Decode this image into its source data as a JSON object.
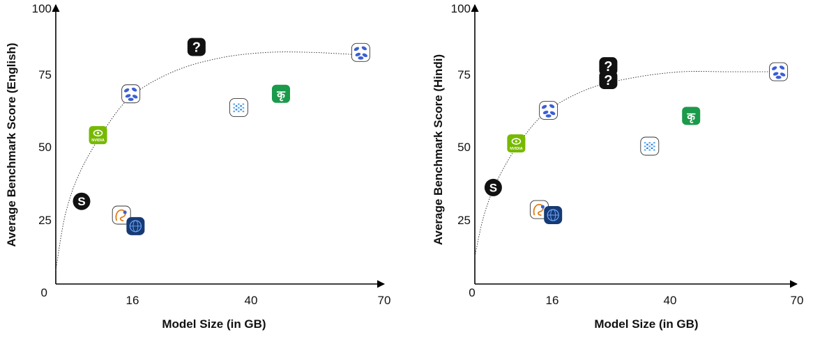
{
  "chart_data": [
    {
      "type": "scatter",
      "title": "",
      "xlabel": "Model Size (in GB)",
      "ylabel": "Average Benchmark Score (English)",
      "xlim": [
        0,
        70
      ],
      "ylim": [
        0,
        100
      ],
      "x_ticks": [
        {
          "value": 0,
          "label": ""
        },
        {
          "value": 16,
          "label": "16"
        },
        {
          "value": 40,
          "label": "40"
        },
        {
          "value": 70,
          "label": "70"
        }
      ],
      "y_ticks": [
        {
          "value": 0,
          "label": "0"
        },
        {
          "value": 25,
          "label": "25"
        },
        {
          "value": 50,
          "label": "50"
        },
        {
          "value": 75,
          "label": "75"
        },
        {
          "value": 100,
          "label": "100"
        }
      ],
      "trend_curve": {
        "style": "dotted",
        "points": [
          [
            0,
            5
          ],
          [
            2,
            25
          ],
          [
            5,
            40
          ],
          [
            10,
            55
          ],
          [
            16,
            68
          ],
          [
            25,
            77
          ],
          [
            35,
            82
          ],
          [
            45,
            84
          ],
          [
            55,
            84
          ],
          [
            66,
            83
          ]
        ]
      },
      "points": [
        {
          "icon": "s-logo-icon",
          "x": 5.5,
          "y": 30
        },
        {
          "icon": "nvidia-logo-icon",
          "x": 9,
          "y": 54
        },
        {
          "icon": "sarvam-leaf-logo-icon",
          "x": 16,
          "y": 69
        },
        {
          "icon": "llama-logo-icon",
          "x": 14,
          "y": 25
        },
        {
          "icon": "globe-logo-icon",
          "x": 17,
          "y": 21
        },
        {
          "icon": "unknown-model-icon",
          "x": 30,
          "y": 86
        },
        {
          "icon": "grid-logo-icon",
          "x": 39,
          "y": 64
        },
        {
          "icon": "krutrim-logo-icon",
          "x": 48,
          "y": 69
        },
        {
          "icon": "sarvam-leaf-logo-icon",
          "x": 65,
          "y": 84
        }
      ]
    },
    {
      "type": "scatter",
      "title": "",
      "xlabel": "Model Size (in GB)",
      "ylabel": "Average Benchmark Score (Hindi)",
      "xlim": [
        0,
        70
      ],
      "ylim": [
        0,
        100
      ],
      "x_ticks": [
        {
          "value": 0,
          "label": "0"
        },
        {
          "value": 16,
          "label": "16"
        },
        {
          "value": 40,
          "label": "40"
        },
        {
          "value": 70,
          "label": "70"
        }
      ],
      "y_ticks": [
        {
          "value": 25,
          "label": "25"
        },
        {
          "value": 50,
          "label": "50"
        },
        {
          "value": 75,
          "label": "75"
        },
        {
          "value": 100,
          "label": "100"
        }
      ],
      "trend_curve": {
        "style": "dotted",
        "points": [
          [
            0,
            10
          ],
          [
            2,
            25
          ],
          [
            5,
            38
          ],
          [
            10,
            52
          ],
          [
            16,
            63
          ],
          [
            25,
            71
          ],
          [
            35,
            75
          ],
          [
            45,
            77
          ],
          [
            55,
            77
          ],
          [
            66,
            77
          ]
        ]
      },
      "points": [
        {
          "icon": "s-logo-icon",
          "x": 4,
          "y": 35
        },
        {
          "icon": "nvidia-logo-icon",
          "x": 9,
          "y": 51
        },
        {
          "icon": "sarvam-leaf-logo-icon",
          "x": 16,
          "y": 63
        },
        {
          "icon": "llama-logo-icon",
          "x": 14,
          "y": 27
        },
        {
          "icon": "globe-logo-icon",
          "x": 17,
          "y": 25
        },
        {
          "icon": "unknown-model-icon",
          "x": 29,
          "y": 79
        },
        {
          "icon": "unknown-model-icon",
          "x": 29,
          "y": 74
        },
        {
          "icon": "grid-logo-icon",
          "x": 38,
          "y": 50
        },
        {
          "icon": "krutrim-logo-icon",
          "x": 47,
          "y": 61
        },
        {
          "icon": "sarvam-leaf-logo-icon",
          "x": 66,
          "y": 77
        }
      ]
    }
  ],
  "icon_colors": {
    "nvidia": "#76b900",
    "krutrim": "#1a9a4a",
    "sarvam": "#3b5fd6",
    "globe": "#163a73",
    "llama_orange": "#e07b16",
    "dark": "#111111"
  },
  "icon_glyphs": {
    "s-logo-icon": "S",
    "unknown-model-icon": "?",
    "krutrim-logo-icon": "कृ",
    "nvidia-logo-icon": "NVIDIA"
  }
}
